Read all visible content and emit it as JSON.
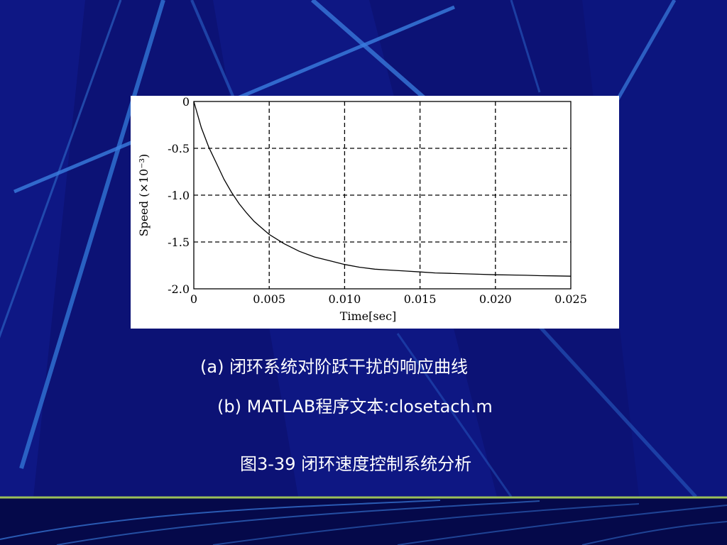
{
  "chart_data": {
    "type": "line",
    "title": "",
    "xlabel": "Time[sec]",
    "ylabel": "Speed (×10⁻³)",
    "xlim": [
      0,
      0.025
    ],
    "ylim": [
      -2.0,
      0
    ],
    "x_ticks": [
      0,
      0.005,
      0.01,
      0.015,
      0.02,
      0.025
    ],
    "x_tick_labels": [
      "0",
      "0.005",
      "0.010",
      "0.015",
      "0.020",
      "0.025"
    ],
    "y_ticks": [
      0,
      -0.5,
      -1.0,
      -1.5,
      -2.0
    ],
    "y_tick_labels": [
      "0",
      "-0.5",
      "-1.0",
      "-1.5",
      "-2.0"
    ],
    "grid": true,
    "grid_style": "dashed",
    "series": [
      {
        "x": [
          0,
          0.0005,
          0.001,
          0.0015,
          0.002,
          0.0025,
          0.003,
          0.0035,
          0.004,
          0.0045,
          0.005,
          0.006,
          0.007,
          0.008,
          0.009,
          0.01,
          0.011,
          0.012,
          0.013,
          0.014,
          0.015,
          0.016,
          0.017,
          0.018,
          0.019,
          0.02,
          0.021,
          0.022,
          0.023,
          0.024,
          0.025
        ],
        "y": [
          0,
          -0.28,
          -0.49,
          -0.66,
          -0.83,
          -0.97,
          -1.09,
          -1.19,
          -1.28,
          -1.35,
          -1.42,
          -1.52,
          -1.6,
          -1.66,
          -1.7,
          -1.74,
          -1.77,
          -1.79,
          -1.8,
          -1.81,
          -1.82,
          -1.83,
          -1.835,
          -1.84,
          -1.845,
          -1.85,
          -1.852,
          -1.855,
          -1.86,
          -1.862,
          -1.865
        ]
      }
    ]
  },
  "captions": {
    "a": "(a)  闭环系统对阶跃干扰的响应曲线",
    "b": "(b)  MATLAB程序文本:closetach.m",
    "figure": "图3-39  闭环速度控制系统分析"
  },
  "colors": {
    "background": "#0a0f6e",
    "accent_stripe": "#3d7fd9",
    "divider": "#9bbf5a",
    "caption_text": "#ffffff"
  }
}
